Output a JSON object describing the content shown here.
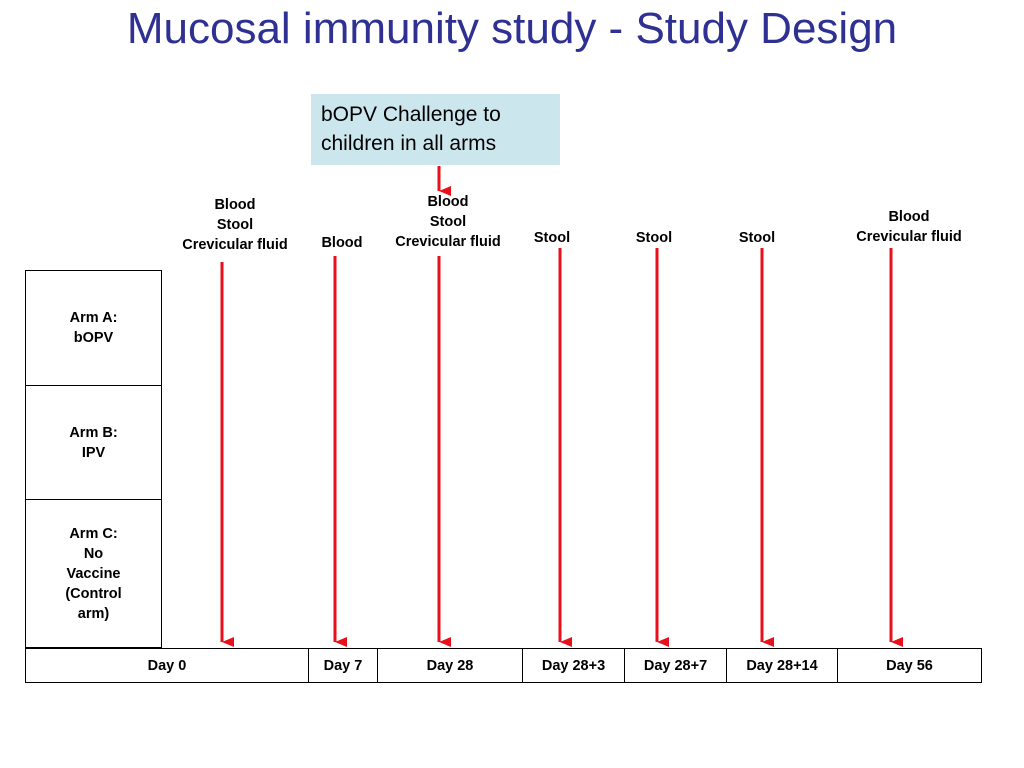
{
  "title": "Mucosal immunity study - Study Design",
  "callout": {
    "line1": "bOPV Challenge to",
    "line2": "children in all arms"
  },
  "sample_labels": [
    {
      "lines": [
        "Blood",
        "Stool",
        "Crevicular fluid"
      ]
    },
    {
      "lines": [
        "Blood"
      ]
    },
    {
      "lines": [
        "Blood",
        "Stool",
        "Crevicular fluid"
      ]
    },
    {
      "lines": [
        "Stool"
      ]
    },
    {
      "lines": [
        "Stool"
      ]
    },
    {
      "lines": [
        "Stool"
      ]
    },
    {
      "lines": [
        "Blood",
        "Crevicular fluid"
      ]
    }
  ],
  "arms": [
    {
      "lines": [
        "Arm A:",
        "bOPV"
      ]
    },
    {
      "lines": [
        "Arm B:",
        "IPV"
      ]
    },
    {
      "lines": [
        "Arm C:",
        "No",
        "Vaccine",
        "(Control",
        "arm)"
      ]
    }
  ],
  "days": [
    "Day 0",
    "Day 7",
    "Day 28",
    "Day 28+3",
    "Day 28+7",
    "Day 28+14",
    "Day 56"
  ],
  "colors": {
    "title": "#2e3192",
    "callout_bg": "#cce6ee",
    "arrow": "#e8101a"
  }
}
